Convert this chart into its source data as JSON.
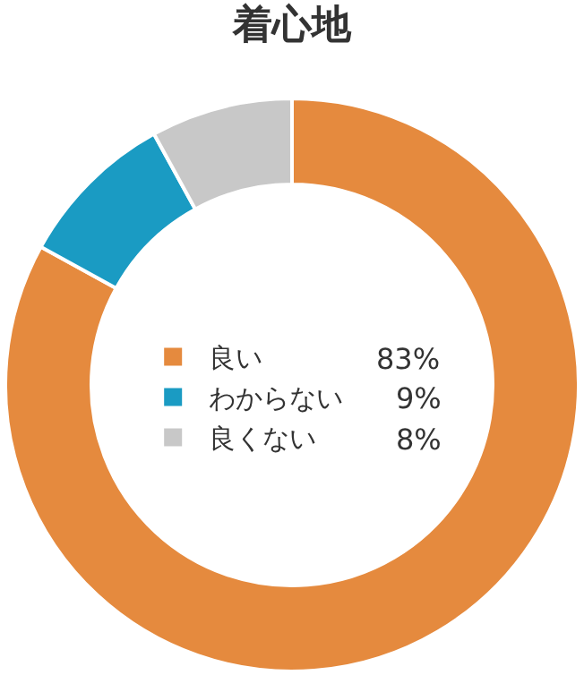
{
  "chart_data": {
    "type": "donut",
    "title": "着心地",
    "categories": [
      "良い",
      "わからない",
      "良くない"
    ],
    "values": [
      83,
      9,
      8
    ],
    "value_labels": [
      "83%",
      "9%",
      "8%"
    ],
    "colors": [
      "#e58a3e",
      "#1a9bc3",
      "#c8c8c8"
    ],
    "legend": "center"
  }
}
